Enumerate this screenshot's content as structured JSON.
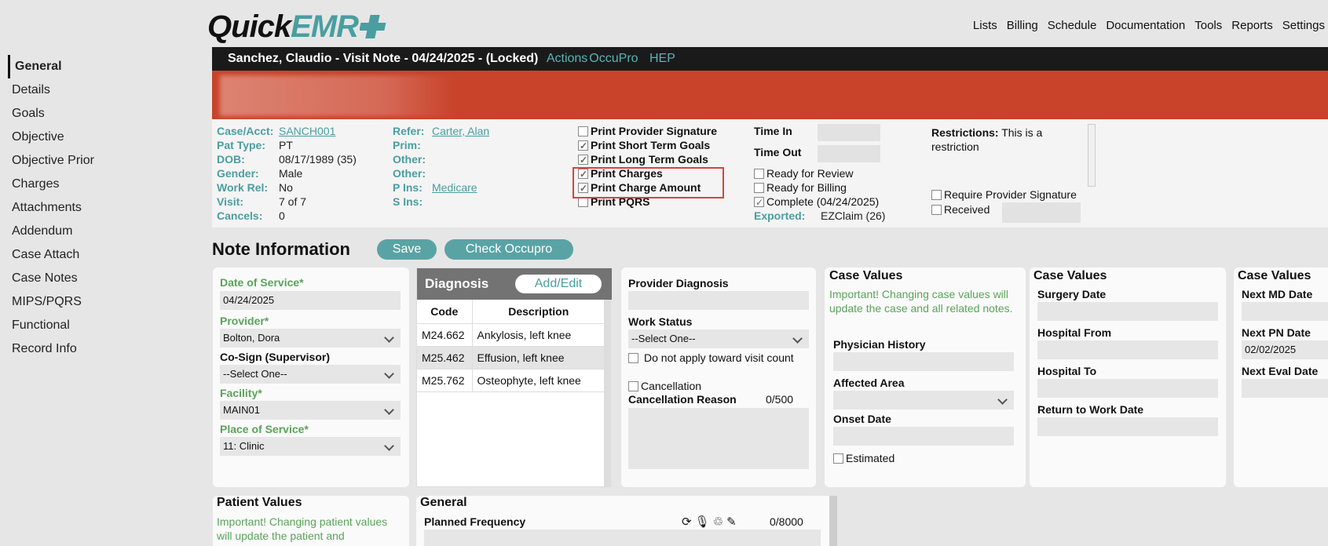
{
  "logo": {
    "part1": "Quick",
    "part2": "EMR"
  },
  "topnav": [
    "Lists",
    "Billing",
    "Schedule",
    "Documentation",
    "Tools",
    "Reports",
    "Settings"
  ],
  "leftnav": [
    "General",
    "Details",
    "Goals",
    "Objective",
    "Objective Prior",
    "Charges",
    "Attachments",
    "Addendum",
    "Case Attach",
    "Case Notes",
    "MIPS/PQRS",
    "Functional",
    "Record Info"
  ],
  "titlebar": {
    "title": "Sanchez, Claudio - Visit Note - 04/24/2025 - (Locked)",
    "links": [
      "Actions",
      "OccuPro",
      "HEP"
    ]
  },
  "patient": {
    "case_acct_label": "Case/Acct:",
    "case_acct": "SANCH001",
    "pat_type_label": "Pat Type:",
    "pat_type": "PT",
    "dob_label": "DOB:",
    "dob": "08/17/1989 (35)",
    "gender_label": "Gender:",
    "gender": "Male",
    "work_rel_label": "Work Rel:",
    "work_rel": "No",
    "visit_label": "Visit:",
    "visit": "7 of 7",
    "cancels_label": "Cancels:",
    "cancels": "0",
    "refer_label": "Refer:",
    "refer": "Carter, Alan",
    "prim_label": "Prim:",
    "other1_label": "Other:",
    "other2_label": "Other:",
    "pins_label": "P Ins:",
    "pins": "Medicare",
    "sins_label": "S Ins:"
  },
  "print_options": [
    {
      "label": "Print Provider Signature",
      "checked": false
    },
    {
      "label": "Print Short Term Goals",
      "checked": true
    },
    {
      "label": "Print Long Term Goals",
      "checked": true
    },
    {
      "label": "Print Charges",
      "checked": true
    },
    {
      "label": "Print Charge Amount",
      "checked": true
    },
    {
      "label": "Print PQRS",
      "checked": false
    }
  ],
  "timing": {
    "time_in": "Time In",
    "time_out": "Time Out",
    "ready_review": "Ready for Review",
    "ready_billing": "Ready for Billing",
    "complete": "Complete (04/24/2025)",
    "exported_label": "Exported:",
    "exported": "EZClaim (26)"
  },
  "restrictions": {
    "label": "Restrictions:",
    "text": "This is a restriction",
    "require_sig": "Require Provider Signature",
    "received": "Received"
  },
  "note_info": {
    "title": "Note Information",
    "save": "Save",
    "check": "Check Occupro"
  },
  "visit": {
    "dos_label": "Date of Service*",
    "dos": "04/24/2025",
    "provider_label": "Provider*",
    "provider": "Bolton, Dora",
    "cosign_label": "Co-Sign (Supervisor)",
    "cosign": "--Select One--",
    "facility_label": "Facility*",
    "facility": "MAIN01",
    "pos_label": "Place of Service*",
    "pos": "11: Clinic"
  },
  "diagnosis": {
    "title": "Diagnosis",
    "add_edit": "Add/Edit",
    "col_code": "Code",
    "col_desc": "Description",
    "rows": [
      {
        "code": "M24.662",
        "desc": "Ankylosis, left knee"
      },
      {
        "code": "M25.462",
        "desc": "Effusion, left knee"
      },
      {
        "code": "M25.762",
        "desc": "Osteophyte, left knee"
      }
    ]
  },
  "provider_diag": {
    "label": "Provider Diagnosis",
    "work_status_label": "Work Status",
    "work_status": "--Select One--",
    "no_apply": "Do not apply toward visit count",
    "cancellation": "Cancellation",
    "cancel_reason": "Cancellation Reason",
    "counter": "0/500"
  },
  "case_values1": {
    "title": "Case Values",
    "note": "Important! Changing case values will update the case and all related notes.",
    "physician": "Physician History",
    "affected": "Affected Area",
    "onset": "Onset Date",
    "estimated": "Estimated"
  },
  "case_values2": {
    "title": "Case Values",
    "surgery": "Surgery Date",
    "hosp_from": "Hospital From",
    "hosp_to": "Hospital To",
    "return_work": "Return to Work Date"
  },
  "case_values3": {
    "title": "Case Values",
    "next_md": "Next MD Date",
    "next_pn": "Next PN Date",
    "next_pn_val": "02/02/2025",
    "next_eval": "Next Eval Date"
  },
  "patient_values": {
    "title": "Patient Values",
    "note": "Important! Changing patient values will update the patient and"
  },
  "general": {
    "title": "General",
    "planned": "Planned Frequency",
    "counter": "0/8000"
  },
  "colors": {
    "accent": "#4a9ea0",
    "banner": "#c8432a",
    "green": "#5aa35a"
  }
}
